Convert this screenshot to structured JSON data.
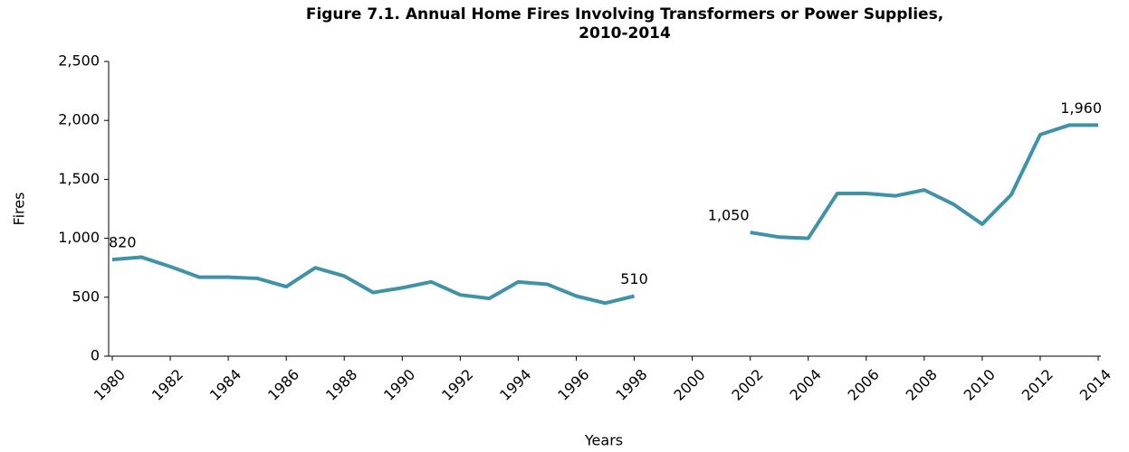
{
  "chart_data": {
    "type": "line",
    "title": "Figure 7.1. Annual Home Fires Involving Transformers or Power Supplies, 2010-2014",
    "x_label": "Years",
    "y_label": "Fires",
    "x": [
      1980,
      1981,
      1982,
      1983,
      1984,
      1985,
      1986,
      1987,
      1988,
      1989,
      1990,
      1991,
      1992,
      1993,
      1994,
      1995,
      1996,
      1997,
      1998,
      1999,
      2000,
      2001,
      2002,
      2003,
      2004,
      2005,
      2006,
      2007,
      2008,
      2009,
      2010,
      2011,
      2012,
      2013,
      2014
    ],
    "series": [
      {
        "name": "Fires",
        "color": "#3f92a7",
        "values": [
          820,
          840,
          760,
          670,
          670,
          660,
          590,
          750,
          680,
          540,
          580,
          630,
          520,
          490,
          630,
          610,
          510,
          450,
          510,
          null,
          null,
          null,
          1050,
          1010,
          1000,
          1380,
          1380,
          1360,
          1410,
          1290,
          1120,
          1370,
          1880,
          1960,
          1960
        ],
        "value_labels": [
          "820",
          null,
          null,
          null,
          null,
          null,
          null,
          null,
          null,
          null,
          null,
          null,
          null,
          null,
          null,
          null,
          null,
          null,
          "510",
          null,
          null,
          null,
          "1,050",
          null,
          null,
          null,
          null,
          null,
          null,
          null,
          null,
          null,
          null,
          null,
          "1,960"
        ]
      }
    ],
    "xlim": [
      1980,
      2014
    ],
    "xticks": [
      1980,
      1982,
      1984,
      1986,
      1988,
      1990,
      1992,
      1994,
      1996,
      1998,
      2000,
      2002,
      2004,
      2006,
      2008,
      2010,
      2012,
      2014
    ],
    "ylim": [
      0,
      2500
    ],
    "yticks": [
      0,
      500,
      {
        "value": 1000,
        "label": "1,000"
      },
      {
        "value": 1500,
        "label": "1,500"
      },
      {
        "value": 2000,
        "label": "2,000"
      },
      {
        "value": 2500,
        "label": "2,500"
      }
    ],
    "grid": false
  }
}
